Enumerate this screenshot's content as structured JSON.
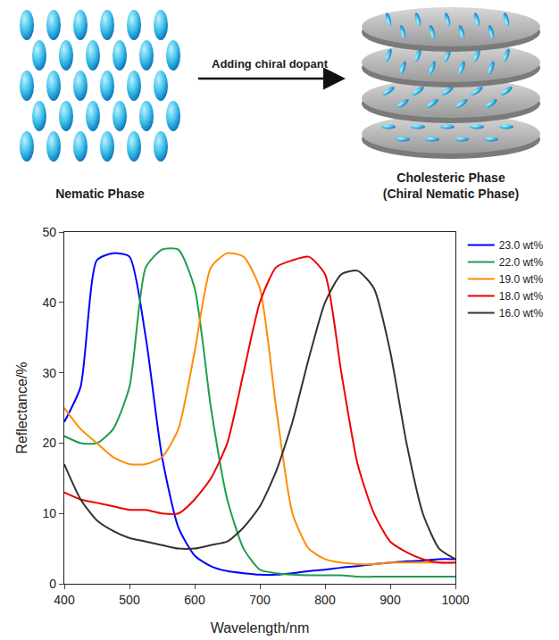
{
  "diagram": {
    "left_label": "Nematic Phase",
    "arrow_label": "Adding chiral dopant",
    "right_label": "Cholesteric Phase",
    "right_sublabel": "(Chiral Nematic Phase)"
  },
  "chart_data": {
    "type": "line",
    "x_label": "Wavelength/nm",
    "y_label": "Reflectance/%",
    "x": [
      400,
      425,
      450,
      475,
      500,
      525,
      550,
      575,
      600,
      625,
      650,
      675,
      700,
      725,
      750,
      775,
      800,
      825,
      850,
      875,
      900,
      925,
      950,
      975,
      1000
    ],
    "series": [
      {
        "name": "23.0 wt%",
        "color": "#0000ff",
        "values": [
          23,
          28,
          46,
          47,
          46.5,
          35,
          18,
          8,
          4,
          2.5,
          1.8,
          1.5,
          1.3,
          1.3,
          1.5,
          1.8,
          2,
          2.3,
          2.5,
          2.8,
          3,
          3.2,
          3.3,
          3.5,
          3.5
        ]
      },
      {
        "name": "22.0 wt%",
        "color": "#1e9e50",
        "values": [
          21,
          20,
          20,
          22,
          28,
          45,
          47.5,
          47.5,
          42,
          25,
          12,
          5,
          2,
          1.5,
          1.3,
          1.2,
          1.2,
          1.2,
          1,
          1,
          1,
          1,
          1,
          1,
          1
        ]
      },
      {
        "name": "19.0 wt%",
        "color": "#ff8c00",
        "values": [
          25,
          22,
          20,
          18,
          17,
          17,
          18,
          22,
          33,
          45,
          47,
          46.5,
          42,
          25,
          10,
          5,
          3.5,
          3,
          2.8,
          2.8,
          3,
          3,
          3,
          3,
          3
        ]
      },
      {
        "name": "18.0 wt%",
        "color": "#ee0000",
        "values": [
          13,
          12,
          11.5,
          11,
          10.5,
          10.5,
          10,
          10,
          12,
          15,
          20,
          30,
          40,
          45,
          46,
          46.5,
          44,
          30,
          17,
          10,
          6,
          4.5,
          3.5,
          3,
          3
        ]
      },
      {
        "name": "16.0 wt%",
        "color": "#333333",
        "values": [
          17,
          12,
          9,
          7.5,
          6.5,
          6,
          5.5,
          5,
          5,
          5.5,
          6,
          8,
          11,
          16,
          23,
          32,
          40,
          44,
          44.5,
          42,
          33,
          20,
          10,
          5,
          3.5
        ]
      }
    ],
    "xlim": [
      400,
      1000
    ],
    "xticks": [
      400,
      500,
      600,
      700,
      800,
      900,
      1000
    ],
    "ylim": [
      0,
      50
    ],
    "yticks": [
      0,
      10,
      20,
      30,
      40,
      50
    ],
    "grid": false,
    "legend": "right"
  }
}
